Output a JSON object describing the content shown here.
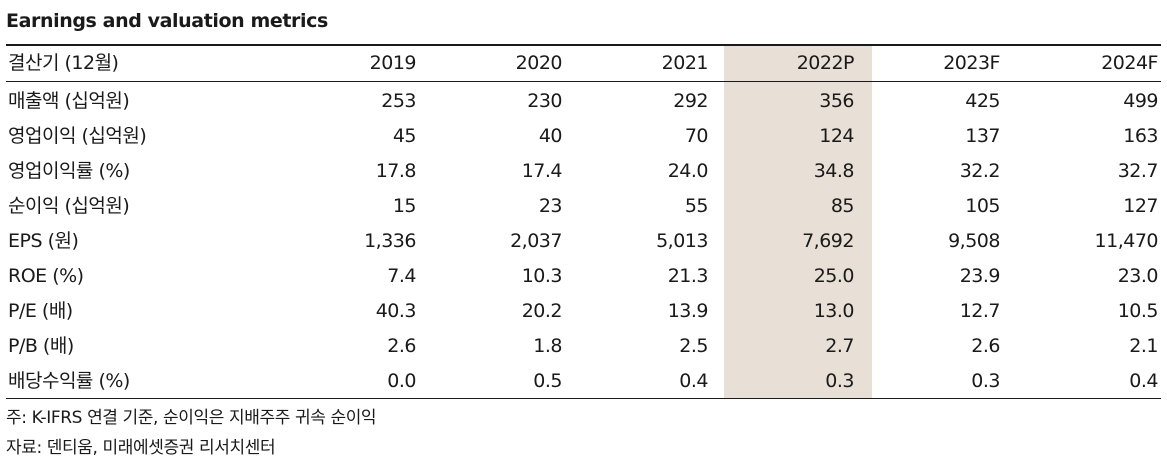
{
  "title": "Earnings and valuation metrics",
  "columns": [
    "결산기 (12월)",
    "2019",
    "2020",
    "2021",
    "2022P",
    "2023F",
    "2024F"
  ],
  "rows": [
    {
      "label": "매출액 (십억원)",
      "values": [
        "253",
        "230",
        "292",
        "356",
        "425",
        "499"
      ]
    },
    {
      "label": "영업이익 (십억원)",
      "values": [
        "45",
        "40",
        "70",
        "124",
        "137",
        "163"
      ]
    },
    {
      "label": "영업이익률 (%)",
      "values": [
        "17.8",
        "17.4",
        "24.0",
        "34.8",
        "32.2",
        "32.7"
      ]
    },
    {
      "label": "순이익 (십억원)",
      "values": [
        "15",
        "23",
        "55",
        "85",
        "105",
        "127"
      ]
    },
    {
      "label": "EPS (원)",
      "values": [
        "1,336",
        "2,037",
        "5,013",
        "7,692",
        "9,508",
        "11,470"
      ]
    },
    {
      "label": "ROE (%)",
      "values": [
        "7.4",
        "10.3",
        "21.3",
        "25.0",
        "23.9",
        "23.0"
      ]
    },
    {
      "label": "P/E (배)",
      "values": [
        "40.3",
        "20.2",
        "13.9",
        "13.0",
        "12.7",
        "10.5"
      ]
    },
    {
      "label": "P/B (배)",
      "values": [
        "2.6",
        "1.8",
        "2.5",
        "2.7",
        "2.6",
        "2.1"
      ]
    },
    {
      "label": "배당수익률 (%)",
      "values": [
        "0.0",
        "0.5",
        "0.4",
        "0.3",
        "0.3",
        "0.4"
      ]
    }
  ],
  "notes": {
    "footnote": "주: K-IFRS 연결 기준, 순이익은 지배주주 귀속 순이익",
    "source": "자료: 덴티움, 미래에셋증권 리서치센터"
  },
  "colors": {
    "highlight": "#e8dfd6",
    "rule": "#1a1a1a"
  }
}
